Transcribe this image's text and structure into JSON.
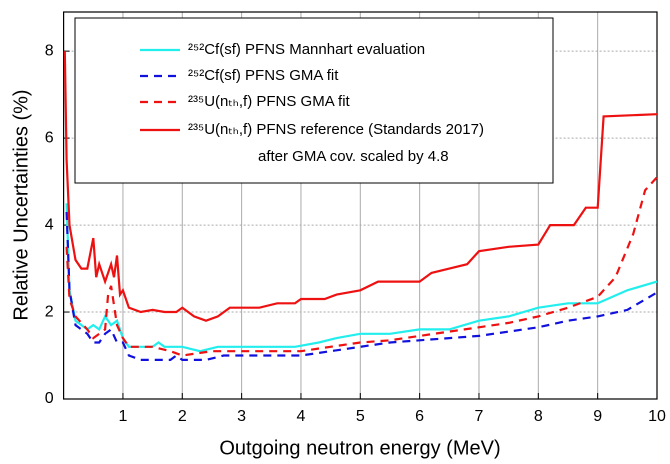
{
  "chart_data": {
    "type": "line",
    "xlabel": "Outgoing neutron energy (MeV)",
    "ylabel": "Relative Uncertainties (%)",
    "xlim": [
      0,
      10
    ],
    "xticks": [
      1,
      2,
      3,
      4,
      5,
      6,
      7,
      8,
      9,
      10
    ],
    "ylim": [
      0,
      8.9
    ],
    "yticks": [
      0,
      2,
      4,
      6,
      8
    ],
    "grid": true,
    "legend": "top-left",
    "annotation": "after GMA cov. scaled by 4.8",
    "series": [
      {
        "name": "²⁵²Cf(sf) PFNS Mannhart evaluation",
        "color": "#22eeee",
        "style": "solid",
        "x": [
          0.05,
          0.1,
          0.2,
          0.4,
          0.5,
          0.6,
          0.7,
          0.8,
          0.9,
          1.0,
          1.1,
          1.5,
          1.6,
          1.7,
          2.0,
          2.3,
          2.6,
          3.0,
          3.5,
          3.9,
          4.3,
          4.6,
          5.0,
          5.5,
          6.0,
          6.5,
          7.0,
          7.5,
          8.0,
          8.5,
          9.0,
          9.5,
          10
        ],
        "values": [
          4.5,
          2.5,
          1.8,
          1.6,
          1.7,
          1.6,
          1.9,
          1.7,
          1.8,
          1.4,
          1.2,
          1.2,
          1.3,
          1.2,
          1.2,
          1.1,
          1.2,
          1.2,
          1.2,
          1.2,
          1.3,
          1.4,
          1.5,
          1.5,
          1.6,
          1.6,
          1.8,
          1.9,
          2.1,
          2.2,
          2.2,
          2.5,
          2.7
        ]
      },
      {
        "name": "²⁵²Cf(sf) PFNS GMA fit",
        "color": "#1111dd",
        "style": "dashed",
        "x": [
          0.05,
          0.1,
          0.2,
          0.4,
          0.5,
          0.6,
          0.7,
          0.8,
          0.9,
          1.0,
          1.1,
          1.3,
          1.8,
          1.9,
          2.0,
          2.4,
          2.7,
          3.5,
          4.0,
          4.5,
          5.0,
          5.5,
          6.0,
          6.5,
          7.0,
          7.5,
          8.0,
          8.5,
          9.0,
          9.5,
          10
        ],
        "values": [
          4.3,
          2.5,
          1.7,
          1.5,
          1.3,
          1.3,
          1.5,
          1.6,
          1.3,
          1.3,
          1.0,
          0.9,
          0.9,
          1.0,
          0.9,
          0.9,
          1.0,
          1.0,
          1.0,
          1.1,
          1.2,
          1.3,
          1.35,
          1.4,
          1.45,
          1.55,
          1.65,
          1.8,
          1.9,
          2.05,
          2.45
        ]
      },
      {
        "name": "²³⁵U(nₜₕ,f) PFNS GMA fit",
        "color": "#ee1111",
        "style": "dashed",
        "x": [
          0.05,
          0.1,
          0.2,
          0.4,
          0.5,
          0.6,
          0.7,
          0.75,
          0.8,
          0.9,
          1.0,
          1.1,
          1.5,
          1.8,
          2.0,
          2.5,
          3.0,
          3.5,
          4.0,
          4.5,
          5.0,
          5.5,
          6.0,
          6.5,
          7.0,
          7.5,
          8.0,
          8.5,
          9.0,
          9.3,
          9.6,
          9.8,
          10
        ],
        "values": [
          3.5,
          2.3,
          1.9,
          1.6,
          1.4,
          1.5,
          1.6,
          2.4,
          2.6,
          1.7,
          1.4,
          1.2,
          1.2,
          1.1,
          1.0,
          1.1,
          1.1,
          1.1,
          1.1,
          1.2,
          1.3,
          1.35,
          1.45,
          1.55,
          1.65,
          1.75,
          1.9,
          2.1,
          2.35,
          2.8,
          3.8,
          4.8,
          5.1
        ]
      },
      {
        "name": "²³⁵U(nₜₕ,f) PFNS reference (Standards 2017)",
        "color": "#ee1111",
        "style": "solid",
        "x": [
          0.02,
          0.05,
          0.1,
          0.2,
          0.3,
          0.4,
          0.5,
          0.55,
          0.6,
          0.7,
          0.8,
          0.85,
          0.9,
          0.95,
          1.0,
          1.1,
          1.3,
          1.5,
          1.7,
          1.9,
          2.0,
          2.2,
          2.4,
          2.6,
          2.8,
          3.3,
          3.6,
          3.9,
          4.0,
          4.4,
          4.6,
          5.0,
          5.3,
          6.0,
          6.2,
          6.5,
          6.8,
          7.0,
          7.5,
          8.0,
          8.2,
          8.6,
          8.8,
          9.0,
          9.1,
          10
        ],
        "values": [
          8.0,
          5.5,
          4.0,
          3.2,
          3.0,
          3.0,
          3.7,
          2.8,
          3.1,
          2.7,
          3.1,
          2.8,
          3.3,
          2.4,
          2.5,
          2.1,
          2.0,
          2.05,
          2.0,
          2.0,
          2.1,
          1.9,
          1.8,
          1.9,
          2.1,
          2.1,
          2.2,
          2.2,
          2.3,
          2.3,
          2.4,
          2.5,
          2.7,
          2.7,
          2.9,
          3.0,
          3.1,
          3.4,
          3.5,
          3.55,
          4.0,
          4.0,
          4.4,
          4.4,
          6.5,
          6.55
        ]
      }
    ]
  }
}
